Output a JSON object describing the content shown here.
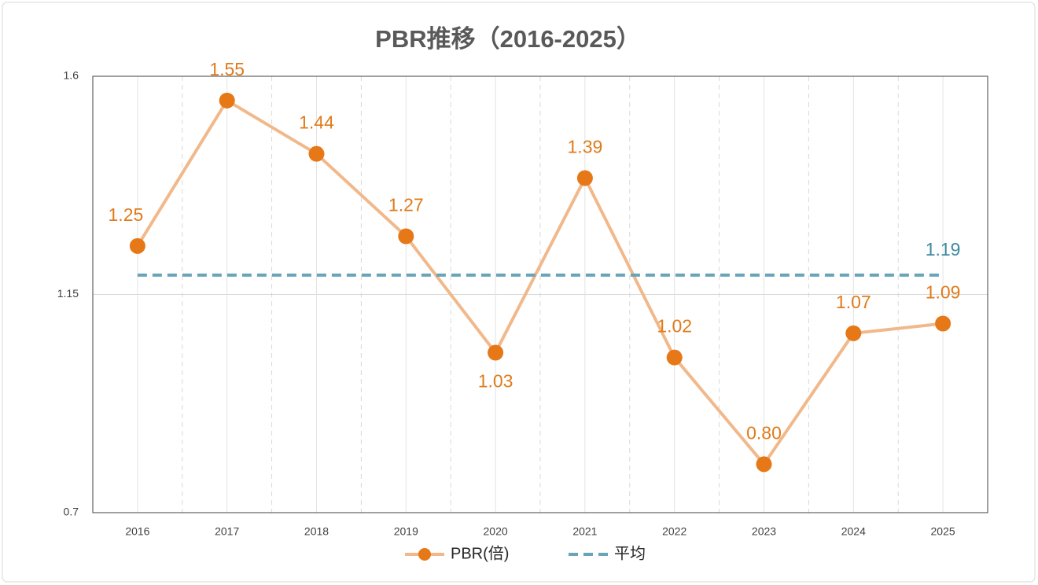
{
  "chart_data": {
    "type": "line",
    "title": "PBR推移（2016-2025）",
    "categories": [
      "2016",
      "2017",
      "2018",
      "2019",
      "2020",
      "2021",
      "2022",
      "2023",
      "2024",
      "2025"
    ],
    "series": [
      {
        "name": "PBR(倍)",
        "color": "#e67817",
        "line_color": "#f1b98b",
        "values": [
          1.25,
          1.55,
          1.44,
          1.27,
          1.03,
          1.39,
          1.02,
          0.8,
          1.07,
          1.09
        ],
        "value_labels": [
          "1.25",
          "1.55",
          "1.44",
          "1.27",
          "1.03",
          "1.39",
          "1.02",
          "0.80",
          "1.07",
          "1.09"
        ]
      },
      {
        "name": "平均",
        "color": "#6aa4b8",
        "dashed": true,
        "values": [
          1.19,
          1.19,
          1.19,
          1.19,
          1.19,
          1.19,
          1.19,
          1.19,
          1.19,
          1.19
        ]
      }
    ],
    "ylim": [
      0.7,
      1.6
    ],
    "yticks": [
      0.7,
      1.15,
      1.6
    ],
    "grid": true,
    "legend": "bottom"
  }
}
